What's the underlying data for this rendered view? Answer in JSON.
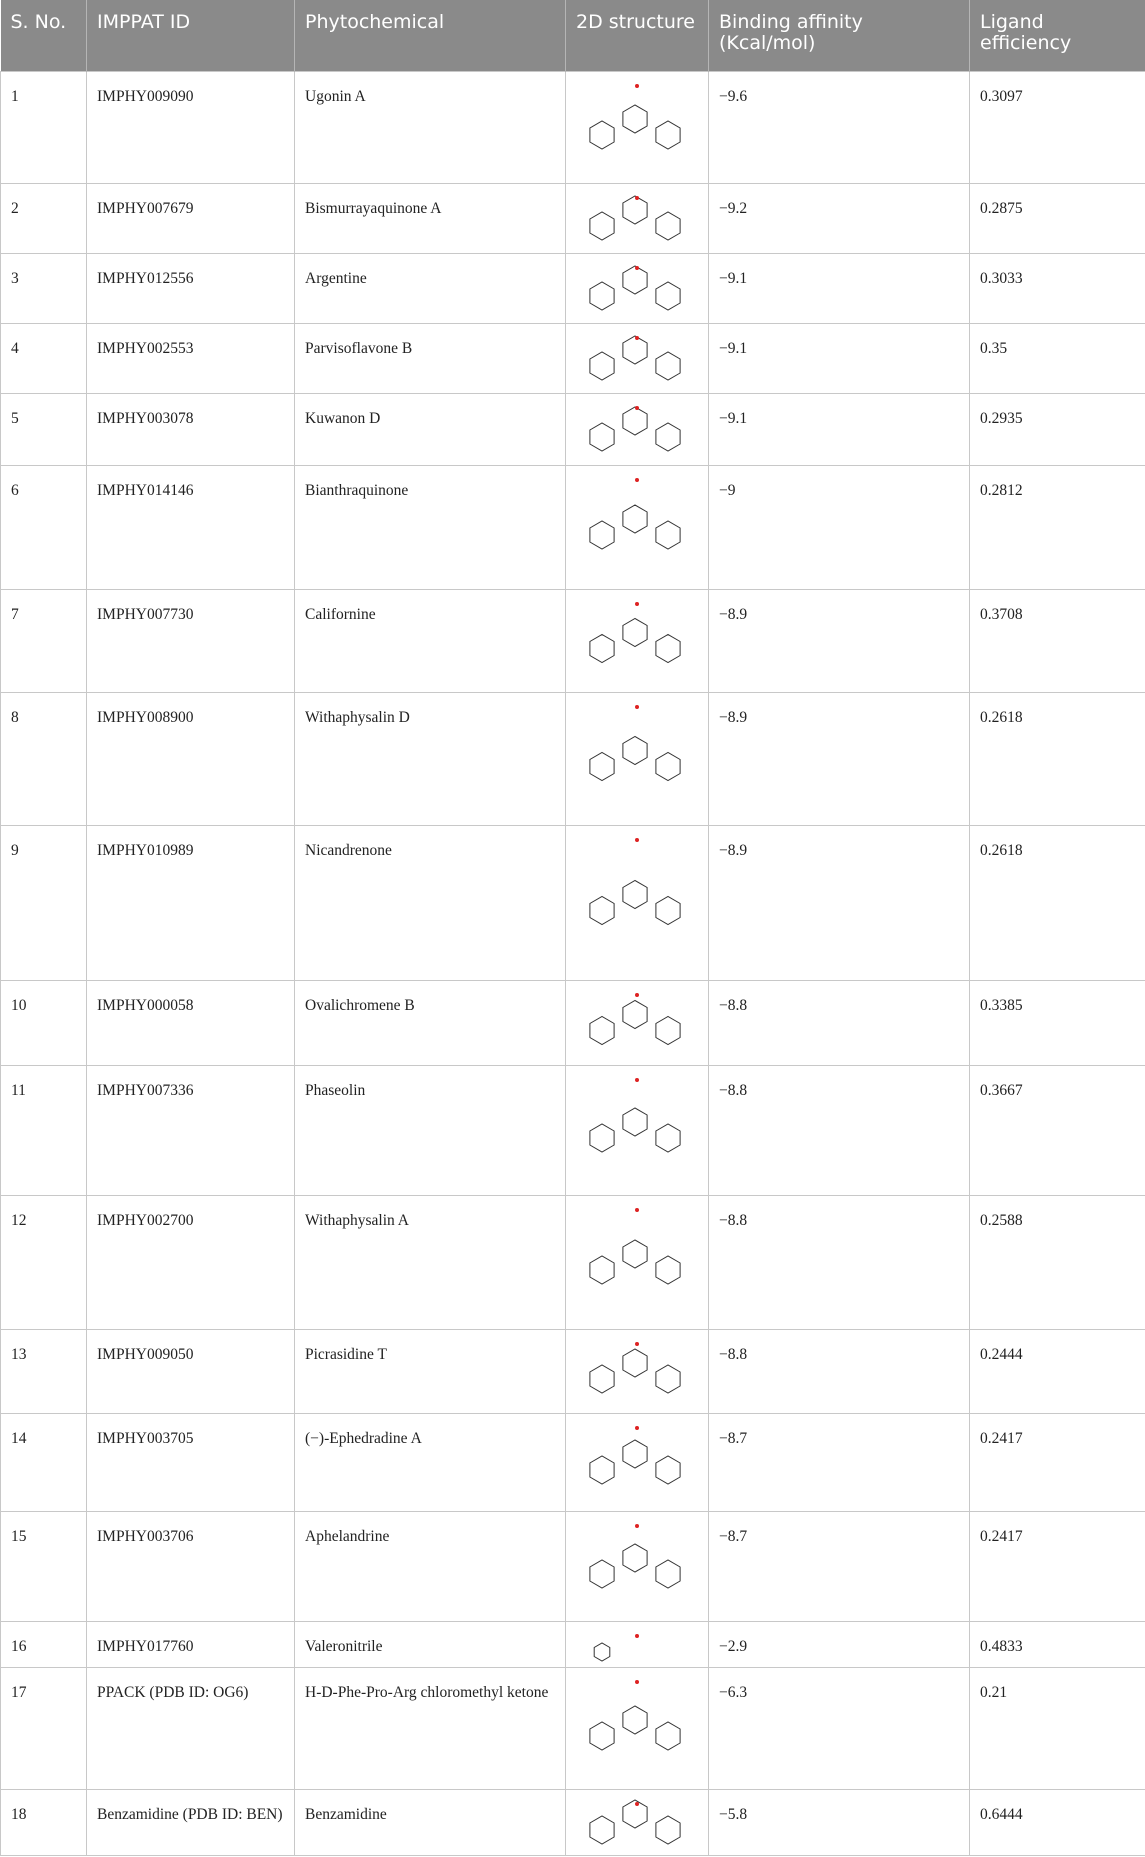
{
  "table": {
    "header": [
      "S. No.",
      "IMPPAT ID",
      "Phytochemical",
      "2D structure",
      "Binding affinity (Kcal/mol)",
      "Ligand efficiency"
    ],
    "rows": [
      [
        "1",
        "IMPHY009090",
        "Ugonin A",
        "−9.6",
        "0.3097"
      ],
      [
        "2",
        "IMPHY007679",
        "Bismurrayaquinone A",
        "−9.2",
        "0.2875"
      ],
      [
        "3",
        "IMPHY012556",
        "Argentine",
        "−9.1",
        "0.3033"
      ],
      [
        "4",
        "IMPHY002553",
        "Parvisoflavone B",
        "−9.1",
        "0.35"
      ],
      [
        "5",
        "IMPHY003078",
        "Kuwanon D",
        "−9.1",
        "0.2935"
      ],
      [
        "6",
        "IMPHY014146",
        "Bianthraquinone",
        "−9",
        "0.2812"
      ],
      [
        "7",
        "IMPHY007730",
        "Californine",
        "−8.9",
        "0.3708"
      ],
      [
        "8",
        "IMPHY008900",
        "Withaphysalin D",
        "−8.9",
        "0.2618"
      ],
      [
        "9",
        "IMPHY010989",
        "Nicandrenone",
        "−8.9",
        "0.2618"
      ],
      [
        "10",
        "IMPHY000058",
        "Ovalichromene B",
        "−8.8",
        "0.3385"
      ],
      [
        "11",
        "IMPHY007336",
        "Phaseolin",
        "−8.8",
        "0.3667"
      ],
      [
        "12",
        "IMPHY002700",
        "Withaphysalin A",
        "−8.8",
        "0.2588"
      ],
      [
        "13",
        "IMPHY009050",
        "Picrasidine T",
        "−8.8",
        "0.2444"
      ],
      [
        "14",
        "IMPHY003705",
        "(−)-Ephedradine A",
        "−8.7",
        "0.2417"
      ],
      [
        "15",
        "IMPHY003706",
        "Aphelandrine",
        "−8.7",
        "0.2417"
      ],
      [
        "16",
        "IMPHY017760",
        "Valeronitrile",
        "−2.9",
        "0.4833"
      ],
      [
        "17",
        "PPACK (PDB ID: OG6)",
        "H-D-Phe-Pro-Arg chloromethyl ketone",
        "−6.3",
        "0.21"
      ],
      [
        "18",
        "Benzamidine (PDB ID: BEN)",
        "Benzamidine",
        "−5.8",
        "0.6444"
      ]
    ]
  }
}
